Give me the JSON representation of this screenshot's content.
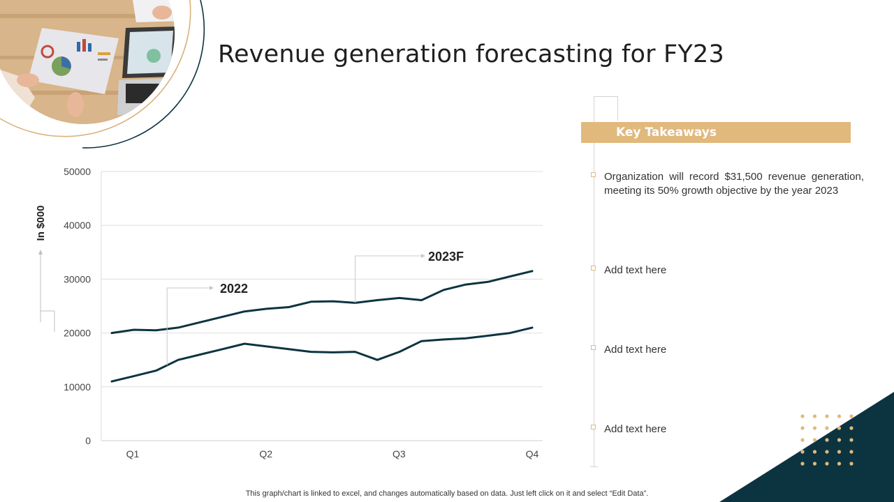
{
  "slide": {
    "title": "Revenue generation forecasting for FY23",
    "footer_note": "This graph/chart is linked to excel,  and changes automatically based on data. Just left click on it and select “Edit Data”."
  },
  "colors": {
    "accent_gold": "#e1b97c",
    "dark_teal": "#0c3440",
    "grid": "#d9d9d9"
  },
  "key_takeaways": {
    "header": "Key Takeaways",
    "items": [
      {
        "text": "Organization will record $31,500 revenue generation, meeting its 50% growth objective by the year 2023"
      },
      {
        "text": "Add text here"
      },
      {
        "text": "Add text here"
      },
      {
        "text": "Add text here"
      }
    ]
  },
  "chart_data": {
    "type": "line",
    "title": "",
    "xlabel": "",
    "ylabel": "In $000",
    "ylim": [
      0,
      50000
    ],
    "y_ticks": [
      0,
      10000,
      20000,
      30000,
      40000,
      50000
    ],
    "x_tick_labels": [
      "Q1",
      "Q2",
      "Q3",
      "Q4"
    ],
    "grid": true,
    "series": [
      {
        "name": "2022",
        "values": [
          11000,
          12000,
          13000,
          15000,
          16000,
          17000,
          18000,
          17500,
          17000,
          16500,
          16400,
          16500,
          15000,
          16500,
          18500,
          18800,
          19000,
          19500,
          20000,
          21000
        ]
      },
      {
        "name": "2023F",
        "values": [
          20000,
          20600,
          20500,
          21000,
          22000,
          23000,
          24000,
          24500,
          24800,
          25800,
          25900,
          25600,
          26100,
          26500,
          26100,
          28000,
          29000,
          29500,
          30500,
          31500
        ]
      }
    ]
  }
}
